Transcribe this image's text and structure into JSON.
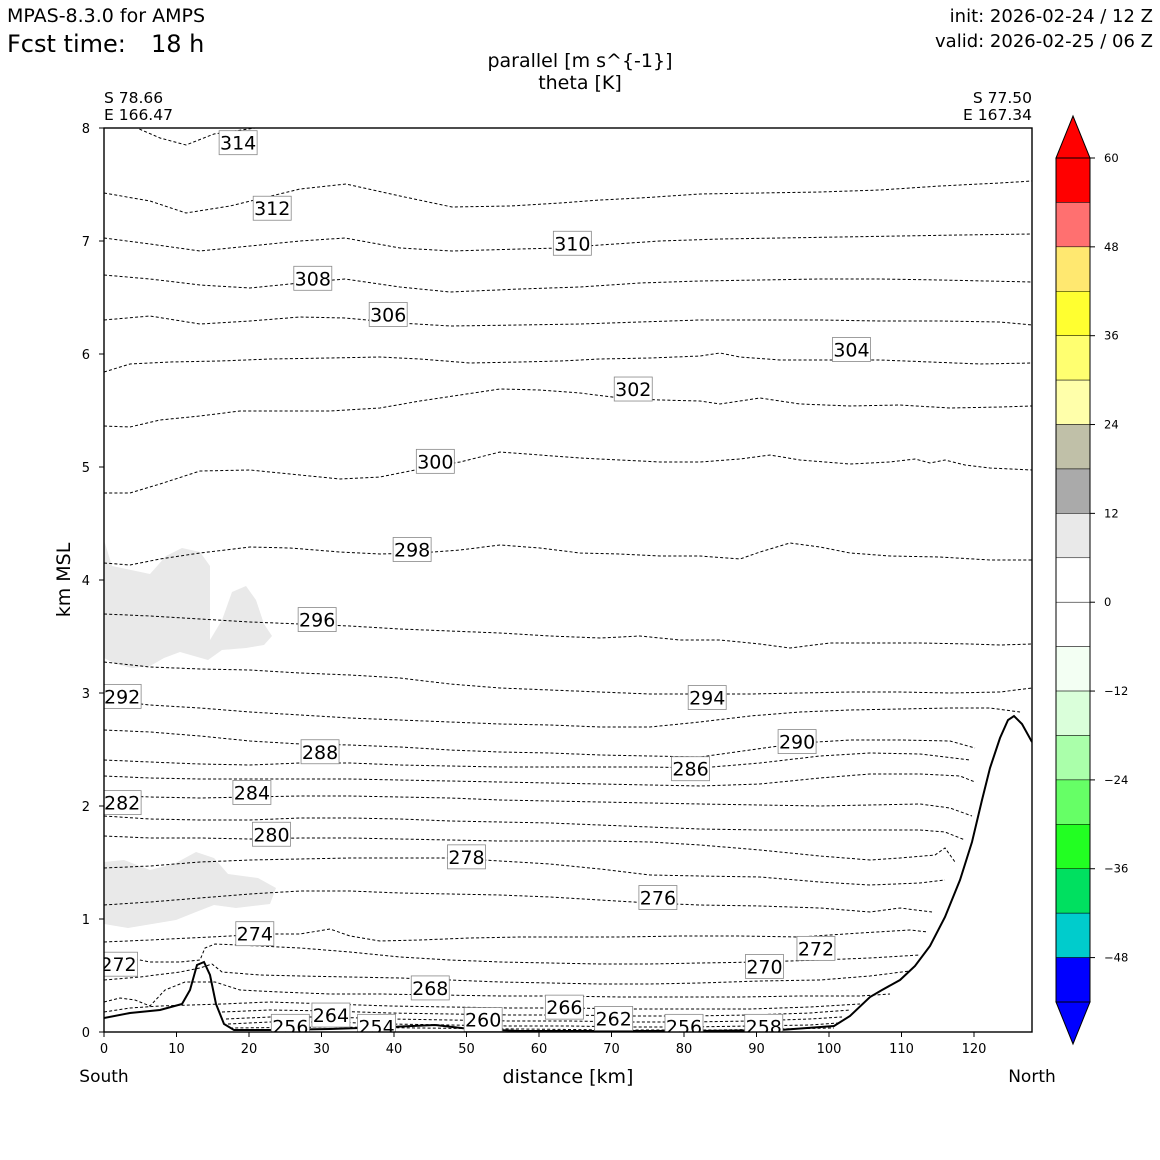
{
  "header": {
    "model": "MPAS-8.3.0 for AMPS",
    "fcst_label": "Fcst time:",
    "fcst_value": "18 h",
    "init": "init: 2026-02-24 / 12 Z",
    "valid": "valid: 2026-02-25 / 06 Z"
  },
  "chart_data": {
    "type": "cross-section contour",
    "title": "parallel [m s^{-1}]",
    "subtitle": "theta [K]",
    "xlabel": "distance [km]",
    "ylabel": "km MSL",
    "xlim": [
      0,
      128
    ],
    "ylim": [
      0,
      8
    ],
    "x_ticks": [
      "0",
      "10",
      "20",
      "30",
      "40",
      "50",
      "60",
      "70",
      "80",
      "90",
      "100",
      "110",
      "120"
    ],
    "y_ticks": [
      "0",
      "1",
      "2",
      "3",
      "4",
      "5",
      "6",
      "7",
      "8"
    ],
    "left_point": {
      "lat": "S 78.66",
      "lon": "E 166.47",
      "end_label": "South"
    },
    "right_point": {
      "lat": "S 77.50",
      "lon": "E 167.34",
      "end_label": "North"
    },
    "colorbar": {
      "ticks": [
        "60",
        "48",
        "36",
        "24",
        "12",
        "0",
        "−12",
        "−24",
        "−36",
        "−48"
      ],
      "colors": [
        "#ff0000",
        "#ff7070",
        "#ffe870",
        "#ffff30",
        "#ffff70",
        "#ffffaa",
        "#c0c0a8",
        "#aaaaaa",
        "#e9e9e9",
        "#ffffff",
        "#ffffff",
        "#f3fff3",
        "#daffda",
        "#aaffaa",
        "#66ff66",
        "#22ff22",
        "#00e060",
        "#00cccc",
        "#0000ff"
      ],
      "top_extend_color": "#ff0000",
      "bottom_extend_color": "#0000ff"
    },
    "shading_color": "#e9e9e9",
    "contour_labels": [
      {
        "text": "314",
        "x": 18.5,
        "y": 7.87
      },
      {
        "text": "312",
        "x": 23.2,
        "y": 7.29
      },
      {
        "text": "310",
        "x": 64.6,
        "y": 6.98
      },
      {
        "text": "308",
        "x": 28.8,
        "y": 6.67
      },
      {
        "text": "306",
        "x": 39.2,
        "y": 6.35
      },
      {
        "text": "304",
        "x": 103.1,
        "y": 6.04
      },
      {
        "text": "302",
        "x": 73.0,
        "y": 5.69
      },
      {
        "text": "300",
        "x": 45.7,
        "y": 5.05
      },
      {
        "text": "298",
        "x": 42.5,
        "y": 4.27
      },
      {
        "text": "296",
        "x": 29.4,
        "y": 3.65
      },
      {
        "text": "294",
        "x": 83.2,
        "y": 2.96
      },
      {
        "text": "292",
        "x": 2.5,
        "y": 2.97
      },
      {
        "text": "290",
        "x": 95.6,
        "y": 2.57
      },
      {
        "text": "288",
        "x": 29.8,
        "y": 2.48
      },
      {
        "text": "286",
        "x": 80.9,
        "y": 2.33
      },
      {
        "text": "284",
        "x": 20.4,
        "y": 2.12
      },
      {
        "text": "282",
        "x": 2.5,
        "y": 2.03
      },
      {
        "text": "280",
        "x": 23.1,
        "y": 1.75
      },
      {
        "text": "278",
        "x": 50.0,
        "y": 1.55
      },
      {
        "text": "276",
        "x": 76.4,
        "y": 1.19
      },
      {
        "text": "274",
        "x": 20.8,
        "y": 0.87
      },
      {
        "text": "272",
        "x": 98.2,
        "y": 0.74
      },
      {
        "text": "272",
        "x": 2.0,
        "y": 0.6
      },
      {
        "text": "270",
        "x": 91.1,
        "y": 0.58
      },
      {
        "text": "268",
        "x": 45.0,
        "y": 0.39
      },
      {
        "text": "266",
        "x": 63.5,
        "y": 0.22
      },
      {
        "text": "264",
        "x": 31.3,
        "y": 0.15
      },
      {
        "text": "262",
        "x": 70.3,
        "y": 0.12
      },
      {
        "text": "260",
        "x": 52.3,
        "y": 0.11
      },
      {
        "text": "258",
        "x": 91.0,
        "y": 0.05
      },
      {
        "text": "256",
        "x": 25.7,
        "y": 0.05
      },
      {
        "text": "256",
        "x": 80.0,
        "y": 0.05
      },
      {
        "text": "254",
        "x": 37.6,
        "y": 0.05
      }
    ]
  }
}
